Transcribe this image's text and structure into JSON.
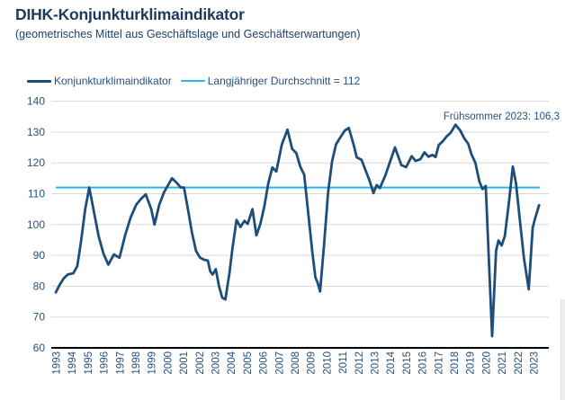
{
  "colors": {
    "title_text": "#1c3a5e",
    "label_text": "#27507c",
    "series_line": "#1d4e79",
    "reference_line": "#29b5ea",
    "gridline": "#d9d9d9",
    "axis_line": "#000000",
    "background": "#ffffff"
  },
  "chart_data": {
    "type": "line",
    "title": "DIHK-Konjunkturklimaindikator",
    "subtitle": "(geometrisches Mittel aus Geschäftslage und Geschäftserwartungen)",
    "xlabel": "",
    "ylabel": "",
    "ylim": [
      60,
      140
    ],
    "yticks": [
      60,
      70,
      80,
      90,
      100,
      110,
      120,
      130,
      140
    ],
    "xlim": [
      1993,
      2023.5
    ],
    "x_tick_years": [
      "1993",
      "1994",
      "1995",
      "1996",
      "1997",
      "1998",
      "1999",
      "2000",
      "2001",
      "2002",
      "2003",
      "2004",
      "2005",
      "2006",
      "2007",
      "2008",
      "2009",
      "2010",
      "2011",
      "2012",
      "2013",
      "2014",
      "2015",
      "2016",
      "2017",
      "2018",
      "2019",
      "2020",
      "2021",
      "2022",
      "2023"
    ],
    "grid": "horizontal",
    "legend_position": "top-left",
    "annotation": {
      "text": "Frühsommer 2023: 106,3",
      "align": "top-right"
    },
    "reference_line": {
      "label": "Langjähriger Durchschnitt = 112",
      "value": 112,
      "color": "#29b5ea"
    },
    "series": [
      {
        "name": "Konjunkturklimaindikator",
        "color": "#1d4e79",
        "points": [
          [
            1993.0,
            78
          ],
          [
            1993.25,
            80.5
          ],
          [
            1993.5,
            82.5
          ],
          [
            1993.75,
            83.8
          ],
          [
            1994.1,
            84.2
          ],
          [
            1994.35,
            86.5
          ],
          [
            1994.6,
            95
          ],
          [
            1994.85,
            105
          ],
          [
            1995.1,
            112
          ],
          [
            1995.4,
            104
          ],
          [
            1995.7,
            96
          ],
          [
            1996.0,
            90.5
          ],
          [
            1996.3,
            87
          ],
          [
            1996.65,
            90.3
          ],
          [
            1997.0,
            89.2
          ],
          [
            1997.35,
            96.4
          ],
          [
            1997.7,
            102.3
          ],
          [
            1998.05,
            106.4
          ],
          [
            1998.35,
            108.3
          ],
          [
            1998.65,
            109.8
          ],
          [
            1999.0,
            104.9
          ],
          [
            1999.2,
            100
          ],
          [
            1999.5,
            106.5
          ],
          [
            1999.8,
            110.5
          ],
          [
            2000.05,
            112.8
          ],
          [
            2000.3,
            115
          ],
          [
            2000.6,
            113.5
          ],
          [
            2000.85,
            112
          ],
          [
            2001.05,
            112
          ],
          [
            2001.3,
            105
          ],
          [
            2001.55,
            97.5
          ],
          [
            2001.8,
            91.5
          ],
          [
            2002.05,
            89.3
          ],
          [
            2002.3,
            88.6
          ],
          [
            2002.55,
            88.3
          ],
          [
            2002.7,
            84.8
          ],
          [
            2002.85,
            83.8
          ],
          [
            2003.05,
            85.5
          ],
          [
            2003.25,
            80
          ],
          [
            2003.45,
            76.3
          ],
          [
            2003.65,
            75.7
          ],
          [
            2003.9,
            84
          ],
          [
            2004.1,
            92.5
          ],
          [
            2004.35,
            101.5
          ],
          [
            2004.6,
            99.2
          ],
          [
            2004.85,
            101.2
          ],
          [
            2005.05,
            100.2
          ],
          [
            2005.35,
            105
          ],
          [
            2005.6,
            96.5
          ],
          [
            2005.85,
            100.2
          ],
          [
            2006.1,
            106
          ],
          [
            2006.35,
            113.5
          ],
          [
            2006.6,
            118.5
          ],
          [
            2006.85,
            117.2
          ],
          [
            2007.2,
            126
          ],
          [
            2007.55,
            130.8
          ],
          [
            2007.85,
            124.5
          ],
          [
            2008.1,
            123.2
          ],
          [
            2008.35,
            118.8
          ],
          [
            2008.6,
            116.2
          ],
          [
            2008.85,
            104
          ],
          [
            2009.1,
            91.5
          ],
          [
            2009.3,
            83
          ],
          [
            2009.45,
            81
          ],
          [
            2009.6,
            78.3
          ],
          [
            2009.85,
            93.5
          ],
          [
            2010.1,
            110.5
          ],
          [
            2010.35,
            120.5
          ],
          [
            2010.6,
            126
          ],
          [
            2010.9,
            128.5
          ],
          [
            2011.15,
            130.5
          ],
          [
            2011.4,
            131.3
          ],
          [
            2011.7,
            126
          ],
          [
            2011.9,
            121.8
          ],
          [
            2012.2,
            121
          ],
          [
            2012.5,
            117
          ],
          [
            2012.7,
            114.3
          ],
          [
            2012.95,
            110.2
          ],
          [
            2013.15,
            112.8
          ],
          [
            2013.35,
            111.8
          ],
          [
            2013.7,
            116
          ],
          [
            2014.0,
            120.5
          ],
          [
            2014.3,
            125
          ],
          [
            2014.7,
            119.3
          ],
          [
            2015.0,
            118.6
          ],
          [
            2015.35,
            122.2
          ],
          [
            2015.6,
            120.6
          ],
          [
            2015.9,
            121.2
          ],
          [
            2016.15,
            123.4
          ],
          [
            2016.4,
            122
          ],
          [
            2016.65,
            122.6
          ],
          [
            2016.85,
            121.9
          ],
          [
            2017.05,
            125.8
          ],
          [
            2017.3,
            127
          ],
          [
            2017.55,
            128.6
          ],
          [
            2017.8,
            129.8
          ],
          [
            2018.1,
            132.4
          ],
          [
            2018.4,
            130.5
          ],
          [
            2018.65,
            128
          ],
          [
            2018.9,
            126.2
          ],
          [
            2019.1,
            122.8
          ],
          [
            2019.35,
            120
          ],
          [
            2019.6,
            114
          ],
          [
            2019.8,
            111.5
          ],
          [
            2020.0,
            112.5
          ],
          [
            2020.4,
            63.8
          ],
          [
            2020.65,
            91.5
          ],
          [
            2020.8,
            94.8
          ],
          [
            2021.0,
            93.2
          ],
          [
            2021.2,
            96.2
          ],
          [
            2021.45,
            107
          ],
          [
            2021.7,
            118.8
          ],
          [
            2021.9,
            113.4
          ],
          [
            2022.15,
            101
          ],
          [
            2022.4,
            89
          ],
          [
            2022.7,
            79
          ],
          [
            2022.95,
            99
          ],
          [
            2023.1,
            102
          ],
          [
            2023.35,
            106.3
          ]
        ]
      }
    ]
  }
}
